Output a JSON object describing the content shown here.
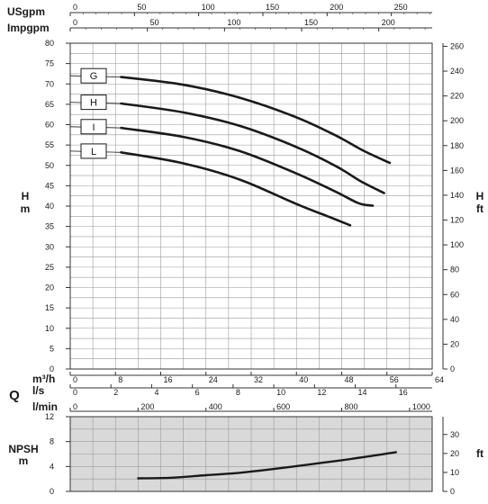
{
  "chart_data": [
    {
      "type": "line",
      "name": "performance",
      "x": {
        "q_m3h": {
          "label": "m³/h",
          "ticks": [
            0,
            8,
            16,
            24,
            32,
            40,
            48,
            56,
            64
          ],
          "lim": [
            0,
            64
          ]
        },
        "q_ls": {
          "label": "l/s",
          "ticks": [
            0,
            2,
            4,
            6,
            8,
            10,
            12,
            14,
            16
          ],
          "lim": [
            0,
            17.78
          ]
        },
        "q_lmin": {
          "label": "l/min",
          "ticks": [
            0,
            200,
            400,
            600,
            800,
            1000
          ],
          "lim": [
            0,
            1066.7
          ]
        },
        "usgpm": {
          "label": "USgpm",
          "ticks": [
            0,
            50,
            100,
            150,
            200,
            250
          ],
          "lim": [
            0,
            281.8
          ]
        },
        "impgpm": {
          "label": "Impgpm",
          "ticks": [
            0,
            50,
            100,
            150,
            200
          ],
          "lim": [
            0,
            234.6
          ]
        },
        "q_symbol": "Q"
      },
      "y_left": {
        "label": "H\nm",
        "ticks": [
          0,
          5,
          10,
          15,
          20,
          25,
          30,
          35,
          40,
          45,
          50,
          55,
          60,
          65,
          70,
          75,
          80
        ],
        "lim": [
          0,
          80
        ]
      },
      "y_right": {
        "label": "H\nft",
        "ticks": [
          0,
          20,
          40,
          60,
          80,
          100,
          120,
          140,
          160,
          180,
          200,
          220,
          240,
          260
        ],
        "lim": [
          0,
          262.5
        ]
      },
      "grid": true,
      "series": [
        {
          "name": "G",
          "x": [
            0,
            9,
            20,
            30,
            40,
            47,
            52,
            56.5
          ],
          "y": [
            72.0,
            71.7,
            69.8,
            66.6,
            61.8,
            57.3,
            53.5,
            50.6
          ]
        },
        {
          "name": "H",
          "x": [
            0,
            9,
            20,
            30,
            40,
            47,
            51.5,
            55.5
          ],
          "y": [
            65.5,
            65.2,
            63.0,
            59.7,
            54.5,
            49.8,
            46.0,
            43.2
          ]
        },
        {
          "name": "I",
          "x": [
            0,
            9,
            20,
            30,
            40,
            47,
            51,
            53.5
          ],
          "y": [
            59.5,
            59.2,
            57.0,
            53.5,
            48.0,
            43.5,
            40.7,
            40.1
          ]
        },
        {
          "name": "L",
          "x": [
            0,
            9,
            20,
            30,
            40,
            45.5,
            49.5
          ],
          "y": [
            53.5,
            53.2,
            50.5,
            46.5,
            40.5,
            37.5,
            35.3
          ]
        }
      ]
    },
    {
      "type": "line",
      "name": "npsh",
      "x": {
        "label": "l/min",
        "lim": [
          0,
          1066.7
        ]
      },
      "y_left": {
        "label": "NPSH\nm",
        "ticks": [
          0,
          4,
          8,
          12
        ],
        "lim": [
          0,
          12
        ]
      },
      "y_right": {
        "label": "ft",
        "ticks": [
          0,
          10,
          20,
          30
        ],
        "lim": [
          0,
          39.37
        ]
      },
      "grid": true,
      "background": "#d9d9d9",
      "series": [
        {
          "name": "",
          "x": [
            200,
            300,
            400,
            500,
            600,
            700,
            800,
            900,
            960
          ],
          "y": [
            2.1,
            2.2,
            2.6,
            3.0,
            3.6,
            4.3,
            5.0,
            5.8,
            6.3
          ]
        }
      ]
    }
  ],
  "colors": {
    "curve": "#1a1a1a",
    "grid": "#9a9a9a",
    "npsh_background": "#d9d9d9",
    "frame": "#333333"
  }
}
